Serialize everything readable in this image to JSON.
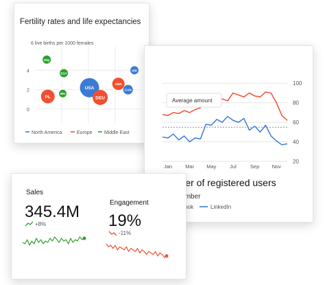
{
  "bubble_card": {
    "title": "Fertility rates and life expectancies",
    "legend": [
      {
        "label": "North America",
        "color": "#3a7bd5"
      },
      {
        "label": "Europe",
        "color": "#f05030"
      },
      {
        "label": "Middle East",
        "color": "#2ca02c"
      }
    ]
  },
  "line_card": {
    "title": "Number of registered users",
    "subtitle": "in September",
    "tooltip": "Average amount",
    "legend": [
      {
        "label": "Facebook",
        "color": "#f05030"
      },
      {
        "label": "LinkedIn",
        "color": "#3a7bd5"
      }
    ]
  },
  "kpi_card": {
    "sales": {
      "label": "Sales",
      "value": "345.4M",
      "change": "+8%",
      "trend": "up",
      "color": "#2ca02c"
    },
    "engagement": {
      "label": "Engagement",
      "value": "19%",
      "change": "-11%",
      "trend": "down",
      "color": "#f05030"
    }
  },
  "chart_data": [
    {
      "type": "scatter",
      "title": "Fertility rates and life expectancies",
      "ylabel": "6 live births per 1000 females",
      "yticks": [
        "0",
        "2",
        "4"
      ],
      "ylim": [
        0,
        6
      ],
      "legend_placement": "bottom",
      "series": [
        {
          "name": "North America",
          "color": "#3a7bd5",
          "points": [
            {
              "label": "USA",
              "x": 5.1,
              "y": 2.2,
              "size": 28
            },
            {
              "label": "CAN",
              "x": 8.7,
              "y": 2.0,
              "size": 14
            },
            {
              "label": "ISR",
              "x": 9.3,
              "y": 4.0,
              "size": 12
            }
          ]
        },
        {
          "name": "Europe",
          "color": "#f05030",
          "points": [
            {
              "label": "PL",
              "x": 1.2,
              "y": 1.3,
              "size": 20
            },
            {
              "label": "DEU",
              "x": 6.1,
              "y": 1.2,
              "size": 22
            },
            {
              "label": "GBR",
              "x": 7.8,
              "y": 2.6,
              "size": 18
            }
          ]
        },
        {
          "name": "Middle East",
          "color": "#2ca02c",
          "points": [
            {
              "label": "IRQ",
              "x": 1.1,
              "y": 5.1,
              "size": 12
            },
            {
              "label": "EGY",
              "x": 2.7,
              "y": 3.7,
              "size": 12
            },
            {
              "label": "IRN",
              "x": 2.6,
              "y": 1.6,
              "size": 11
            }
          ]
        }
      ]
    },
    {
      "type": "line",
      "title": "Number of registered users",
      "subtitle": "in September",
      "categories": [
        "Jan",
        "Mar",
        "May",
        "Jul",
        "Sep",
        "Nov"
      ],
      "x": [
        0,
        0.5,
        1,
        1.5,
        2,
        2.5,
        3,
        3.5,
        4,
        4.5,
        5,
        5.5,
        6,
        6.5,
        7,
        7.5,
        8,
        8.5,
        9,
        9.5,
        10,
        10.5,
        11,
        11.5
      ],
      "ylim": [
        20,
        110
      ],
      "yticks": [
        20,
        40,
        60,
        80,
        100
      ],
      "yaxis_side": "right",
      "average_line": 55,
      "series": [
        {
          "name": "Facebook",
          "color": "#f05030",
          "values": [
            68,
            67,
            70,
            69,
            72,
            70,
            73,
            75,
            86,
            87,
            80,
            84,
            82,
            90,
            88,
            86,
            90,
            87,
            86,
            91,
            90,
            80,
            67,
            62
          ]
        },
        {
          "name": "LinkedIn",
          "color": "#3a7bd5",
          "values": [
            45,
            44,
            48,
            42,
            46,
            40,
            44,
            43,
            58,
            57,
            63,
            60,
            66,
            62,
            60,
            64,
            52,
            56,
            50,
            57,
            46,
            41,
            37,
            38
          ]
        }
      ]
    },
    {
      "type": "line",
      "title": "Sales",
      "series": [
        {
          "name": "",
          "color": "#2ca02c",
          "values": [
            6,
            5,
            8,
            4,
            7,
            5,
            9,
            6,
            8,
            5,
            7,
            6,
            9,
            7,
            10,
            8,
            6,
            9,
            7,
            8,
            5,
            9,
            6,
            8,
            7,
            10,
            8,
            9
          ]
        }
      ]
    },
    {
      "type": "line",
      "title": "Engagement",
      "series": [
        {
          "name": "",
          "color": "#f05030",
          "values": [
            10,
            8,
            9,
            7,
            9,
            6,
            8,
            7,
            6,
            8,
            5,
            7,
            6,
            5,
            7,
            4,
            6,
            5,
            3,
            5,
            4,
            3,
            5,
            2,
            4,
            3,
            1,
            2
          ]
        }
      ]
    }
  ]
}
